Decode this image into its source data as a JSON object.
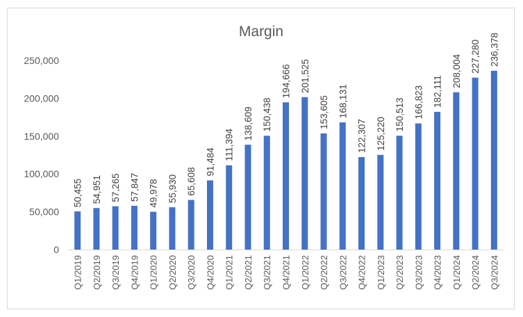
{
  "chart_data": {
    "type": "bar",
    "title": "Margin",
    "xlabel": "",
    "ylabel": "",
    "ylim": [
      0,
      250000
    ],
    "yticks": [
      0,
      50000,
      100000,
      150000,
      200000,
      250000
    ],
    "ytick_labels": [
      "0",
      "50,000",
      "100,000",
      "150,000",
      "200,000",
      "250,000"
    ],
    "grid": false,
    "legend": "none",
    "categories": [
      "Q1/2019",
      "Q2/2019",
      "Q3/2019",
      "Q4/2019",
      "Q1/2020",
      "Q2/2020",
      "Q3/2020",
      "Q4/2020",
      "Q1/2021",
      "Q2/2021",
      "Q3/2021",
      "Q4/2021",
      "Q1/2022",
      "Q2/2022",
      "Q3/2022",
      "Q4/2022",
      "Q1/2023",
      "Q2/2023",
      "Q3/2023",
      "Q4/2023",
      "Q1/2024",
      "Q2/2024",
      "Q3/2024"
    ],
    "values": [
      50455,
      54951,
      57265,
      57847,
      49978,
      55930,
      65608,
      91484,
      111394,
      138609,
      150438,
      194666,
      201525,
      153605,
      168131,
      122307,
      125220,
      150513,
      166823,
      182111,
      208004,
      227280,
      236378
    ],
    "data_labels": [
      "50,455",
      "54,951",
      "57,265",
      "57,847",
      "49,978",
      "55,930",
      "65,608",
      "91,484",
      "111,394",
      "138,609",
      "150,438",
      "194,666",
      "201,525",
      "153,605",
      "168,131",
      "122,307",
      "125,220",
      "150,513",
      "166,823",
      "182,111",
      "208,004",
      "227,280",
      "236,378"
    ],
    "colors": {
      "bar": "#4472c4",
      "axis": "#d9d9d9",
      "text": "#595959"
    }
  }
}
